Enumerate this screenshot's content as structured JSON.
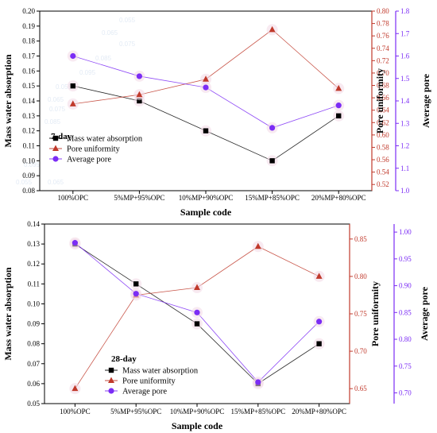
{
  "colors": {
    "mass": "#000000",
    "pore_uniformity": "#c0392b",
    "average_pore": "#7b2cf5"
  },
  "chart_data": [
    {
      "type": "line",
      "panel_label": "7-day",
      "categories": [
        "100%OPC",
        "5%MP+95%OPC",
        "10%MP+90%OPC",
        "15%MP+85%OPC",
        "20%MP+80%OPC"
      ],
      "xlabel": "Sample code",
      "axes": {
        "left": {
          "label": "Mass water absorption",
          "ylim": [
            0.08,
            0.2
          ],
          "ticks": [
            "0.08",
            "0.09",
            "0.10",
            "0.11",
            "0.12",
            "0.13",
            "0.14",
            "0.15",
            "0.16",
            "0.17",
            "0.18",
            "0.19",
            "0.20"
          ]
        },
        "right1": {
          "label": "Pore uniformity",
          "ylim": [
            0.51,
            0.8
          ],
          "ticks": [
            "0.52",
            "0.54",
            "0.56",
            "0.58",
            "0.60",
            "0.62",
            "0.64",
            "0.66",
            "0.68",
            "0.70",
            "0.72",
            "0.74",
            "0.76",
            "0.78",
            "0.80"
          ]
        },
        "right2": {
          "label": "Average pore",
          "ylim": [
            1.0,
            1.8
          ],
          "ticks": [
            "1.0",
            "1.1",
            "1.2",
            "1.3",
            "1.4",
            "1.5",
            "1.6",
            "1.7",
            "1.8"
          ]
        }
      },
      "series": [
        {
          "name": "Mass water absorption",
          "axis": "left",
          "marker": "square",
          "values": [
            0.15,
            0.14,
            0.12,
            0.1,
            0.13
          ]
        },
        {
          "name": "Pore uniformity",
          "axis": "right1",
          "marker": "triangle",
          "values": [
            0.65,
            0.665,
            0.69,
            0.77,
            0.675
          ]
        },
        {
          "name": "Average pore",
          "axis": "right2",
          "marker": "circle",
          "values": [
            1.6,
            1.51,
            1.46,
            1.28,
            1.38
          ]
        }
      ],
      "legend": "lower-left"
    },
    {
      "type": "line",
      "panel_label": "28-day",
      "categories": [
        "100%OPC",
        "5%MP+95%OPC",
        "10%MP+90%OPC",
        "15%MP+85%OPC",
        "20%MP+80%OPC"
      ],
      "xlabel": "Sample code",
      "axes": {
        "left": {
          "label": "Mass water absorption",
          "ylim": [
            0.05,
            0.14
          ],
          "ticks": [
            "0.05",
            "0.06",
            "0.07",
            "0.08",
            "0.09",
            "0.10",
            "0.11",
            "0.12",
            "0.13",
            "0.14"
          ]
        },
        "right1": {
          "label": "Pore uniformity",
          "ylim": [
            0.63,
            0.87
          ],
          "ticks": [
            "0.65",
            "0.70",
            "0.75",
            "0.80",
            "0.85"
          ]
        },
        "right2": {
          "label": "Average pore",
          "ylim": [
            0.68,
            1.015
          ],
          "ticks": [
            "0.70",
            "0.75",
            "0.80",
            "0.85",
            "0.90",
            "0.95",
            "1.00"
          ]
        }
      },
      "series": [
        {
          "name": "Mass water absorption",
          "axis": "left",
          "marker": "square",
          "values": [
            0.13,
            0.11,
            0.09,
            0.06,
            0.08
          ]
        },
        {
          "name": "Pore uniformity",
          "axis": "right1",
          "marker": "triangle",
          "values": [
            0.65,
            0.775,
            0.785,
            0.84,
            0.8
          ]
        },
        {
          "name": "Average pore",
          "axis": "right2",
          "marker": "circle",
          "values": [
            0.98,
            0.885,
            0.85,
            0.72,
            0.833
          ]
        }
      ],
      "legend": "lower-center"
    }
  ]
}
